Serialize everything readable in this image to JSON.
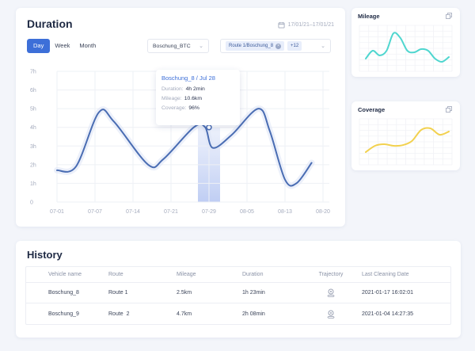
{
  "duration": {
    "title": "Duration",
    "date_range": "17/01/21–17/01/21",
    "period_tabs": [
      "Day",
      "Week",
      "Month"
    ],
    "active_period": "Day",
    "vehicle_select": "Boschung_BTC",
    "route_tag": "Route 1/Boschung_8",
    "route_more": "+12",
    "tooltip": {
      "title": "Boschung_8 / Jul 28",
      "duration_label": "Duration:",
      "duration_value": "4h 2min",
      "mileage_label": "Mileage:",
      "mileage_value": "10.6km",
      "coverage_label": "Coverage:",
      "coverage_value": "96%"
    }
  },
  "chart_data": [
    {
      "id": "duration",
      "type": "line",
      "title": "Duration",
      "x": [
        "07-01",
        "07-07",
        "07-14",
        "07-21",
        "07-29",
        "08-05",
        "08-13",
        "08-20"
      ],
      "y_ticks": [
        "0",
        "1h",
        "2h",
        "3h",
        "4h",
        "5h",
        "6h",
        "7h"
      ],
      "ylim": [
        0,
        7
      ],
      "points": [
        [
          0,
          1.7
        ],
        [
          0.5,
          1.9
        ],
        [
          1.1,
          4.8
        ],
        [
          1.5,
          4.3
        ],
        [
          2.4,
          2.0
        ],
        [
          2.8,
          2.3
        ],
        [
          3.6,
          4.0
        ],
        [
          3.9,
          4.0
        ],
        [
          4.1,
          2.9
        ],
        [
          4.6,
          3.6
        ],
        [
          5.3,
          5.0
        ],
        [
          5.6,
          3.8
        ],
        [
          6.0,
          1.2
        ],
        [
          6.3,
          1.0
        ],
        [
          6.7,
          2.1
        ]
      ],
      "highlight": {
        "label": "07-29",
        "value_h": 4.0
      },
      "color": "#4a6db3"
    },
    {
      "id": "mileage",
      "type": "line",
      "title": "Mileage",
      "values": [
        0.1,
        0.35,
        0.2,
        0.35,
        0.9,
        0.75,
        0.35,
        0.3,
        0.4,
        0.35,
        0.1,
        0.0,
        0.15
      ],
      "color": "#4fd6cf"
    },
    {
      "id": "coverage",
      "type": "line",
      "title": "Coverage",
      "values": [
        0.1,
        0.3,
        0.35,
        0.3,
        0.32,
        0.45,
        0.8,
        0.85,
        0.65,
        0.75
      ],
      "color": "#f2d14f"
    }
  ],
  "mileage": {
    "title": "Mileage"
  },
  "coverage": {
    "title": "Coverage"
  },
  "history": {
    "title": "History",
    "columns": [
      "Vehicle name",
      "Route",
      "Mileage",
      "Duration",
      "Trajectory",
      "Last Cleaning Date"
    ],
    "rows": [
      {
        "vehicle": "Boschung_8",
        "route": "Route 1",
        "mileage": "2.5km",
        "duration": "1h 23min",
        "last_cleaning": "2021-01-17 16:02:01"
      },
      {
        "vehicle": "Boschung_9",
        "route": "Route  2",
        "mileage": "4.7km",
        "duration": "2h 08min",
        "last_cleaning": "2021-01-04 14:27:35"
      }
    ]
  },
  "colors": {
    "accent": "#3d6fd8",
    "line": "#4a6db3",
    "mileage": "#4fd6cf",
    "coverage": "#f2d14f"
  }
}
